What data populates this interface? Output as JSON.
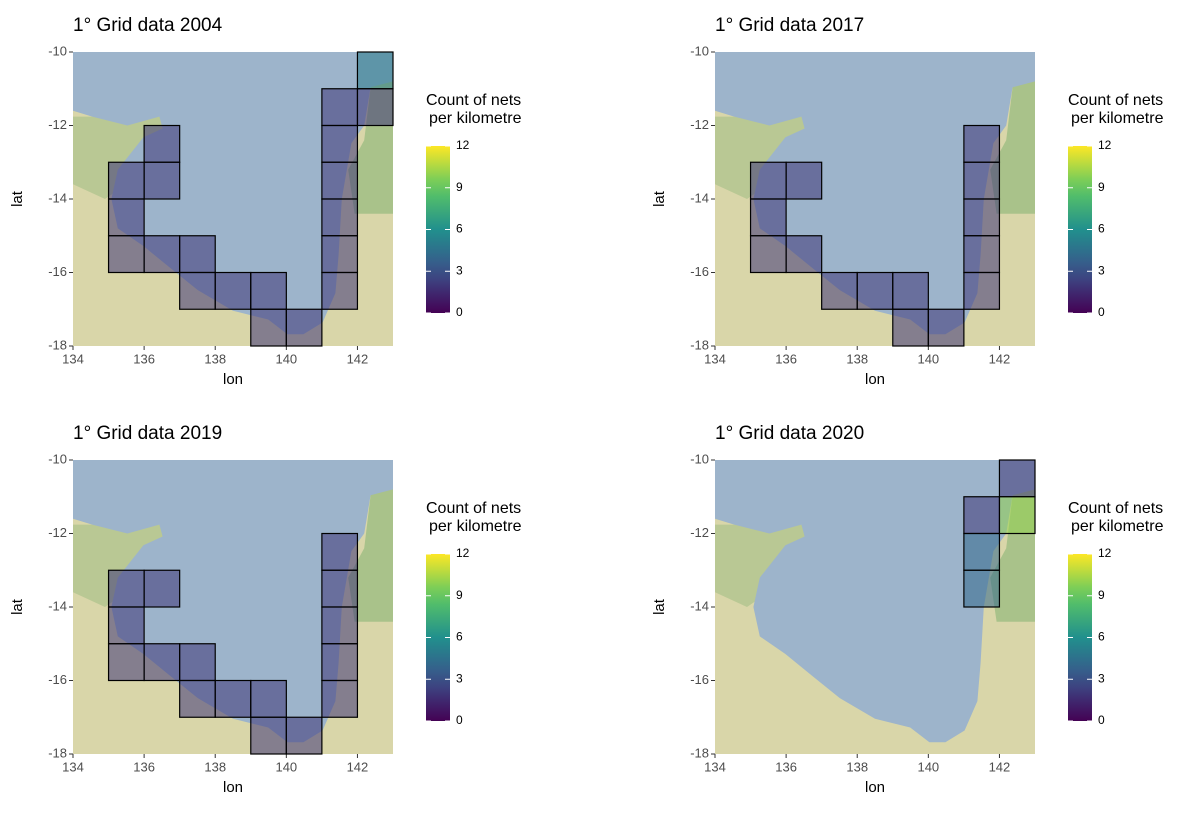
{
  "chart_data": [
    {
      "type": "tile",
      "title": "1° Grid data 2004",
      "x_label": "lon",
      "y_label": "lat",
      "xlim": [
        134,
        143
      ],
      "ylim": [
        -18,
        -10
      ],
      "xticks": [
        134,
        136,
        138,
        140,
        142
      ],
      "yticks": [
        -18,
        -16,
        -14,
        -12,
        -10
      ],
      "legend_title": [
        "Count of nets",
        "per kilometre"
      ],
      "colormap": "viridis",
      "clim": [
        0,
        12
      ],
      "colorbar_ticks": [
        0,
        3,
        6,
        9,
        12
      ],
      "lon": [
        142,
        142,
        141,
        141,
        141,
        141,
        141,
        141,
        135,
        135,
        135,
        136,
        136,
        136,
        137,
        137,
        138,
        139,
        139,
        140
      ],
      "lat": [
        -11,
        -12,
        -12,
        -13,
        -14,
        -15,
        -16,
        -17,
        -14,
        -15,
        -16,
        -13,
        -14,
        -16,
        -16,
        -17,
        -17,
        -17,
        -18,
        -18
      ],
      "values": [
        5,
        2,
        2,
        2,
        2,
        2,
        2,
        2,
        2,
        2,
        2,
        2,
        2,
        2,
        2,
        2,
        2,
        2,
        2,
        2
      ]
    },
    {
      "type": "tile",
      "title": "1° Grid data 2017",
      "x_label": "lon",
      "y_label": "lat",
      "xlim": [
        134,
        143
      ],
      "ylim": [
        -18,
        -10
      ],
      "xticks": [
        134,
        136,
        138,
        140,
        142
      ],
      "yticks": [
        -18,
        -16,
        -14,
        -12,
        -10
      ],
      "legend_title": [
        "Count of nets",
        "per kilometre"
      ],
      "colormap": "viridis",
      "clim": [
        0,
        12
      ],
      "colorbar_ticks": [
        0,
        3,
        6,
        9,
        12
      ],
      "lon": [
        135,
        135,
        135,
        136,
        136,
        137,
        138,
        139,
        139,
        140,
        141,
        141,
        141,
        141,
        141
      ],
      "lat": [
        -14,
        -15,
        -16,
        -14,
        -16,
        -17,
        -17,
        -17,
        -18,
        -18,
        -13,
        -14,
        -15,
        -16,
        -17
      ],
      "values": [
        2,
        2,
        2,
        2,
        2,
        2,
        2,
        2,
        2,
        2,
        2,
        2,
        2,
        2,
        2
      ]
    },
    {
      "type": "tile",
      "title": "1° Grid data 2019",
      "x_label": "lon",
      "y_label": "lat",
      "xlim": [
        134,
        143
      ],
      "ylim": [
        -18,
        -10
      ],
      "xticks": [
        134,
        136,
        138,
        140,
        142
      ],
      "yticks": [
        -18,
        -16,
        -14,
        -12,
        -10
      ],
      "legend_title": [
        "Count of nets",
        "per kilometre"
      ],
      "colormap": "viridis",
      "clim": [
        0,
        12
      ],
      "colorbar_ticks": [
        0,
        3,
        6,
        9,
        12
      ],
      "lon": [
        135,
        135,
        135,
        136,
        136,
        137,
        137,
        138,
        139,
        139,
        140,
        141,
        141,
        141,
        141,
        141
      ],
      "lat": [
        -14,
        -15,
        -16,
        -14,
        -16,
        -16,
        -17,
        -17,
        -17,
        -18,
        -18,
        -13,
        -14,
        -15,
        -16,
        -17
      ],
      "values": [
        2,
        2,
        2,
        2,
        2,
        2,
        2,
        2,
        2,
        2,
        2,
        2,
        2,
        2,
        2,
        2
      ]
    },
    {
      "type": "tile",
      "title": "1° Grid data 2020",
      "x_label": "lon",
      "y_label": "lat",
      "xlim": [
        134,
        143
      ],
      "ylim": [
        -18,
        -10
      ],
      "xticks": [
        134,
        136,
        138,
        140,
        142
      ],
      "yticks": [
        -18,
        -16,
        -14,
        -12,
        -10
      ],
      "legend_title": [
        "Count of nets",
        "per kilometre"
      ],
      "colormap": "viridis",
      "clim": [
        0,
        12
      ],
      "colorbar_ticks": [
        0,
        3,
        6,
        9,
        12
      ],
      "lon": [
        142,
        142,
        141,
        141,
        141
      ],
      "lat": [
        -11,
        -12,
        -12,
        -13,
        -14
      ],
      "values": [
        2,
        10,
        2,
        4,
        4
      ]
    }
  ]
}
